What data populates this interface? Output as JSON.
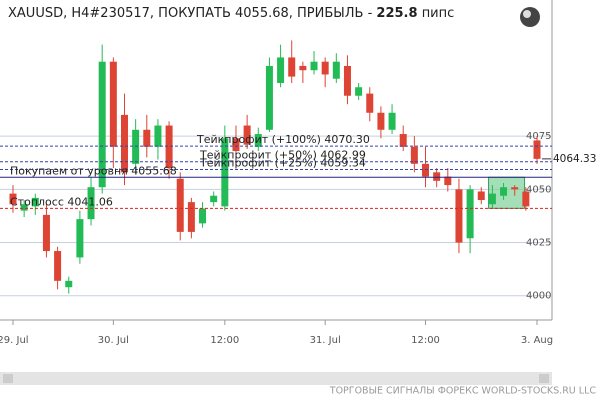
{
  "chart_data": {
    "type": "candlestick",
    "title": "XAUUSD, H4#230517, ПОКУПАТЬ 4055.68, ПРИБЫЛЬ -",
    "profit": 225.8,
    "profit_unit": "пипс",
    "footer": "ТОРГОВЫЕ СИГНАЛЫ ФОРЕКС WORLD-STOCKS.RU LLC",
    "categories": [
      "29. Jul",
      null,
      null,
      null,
      null,
      null,
      null,
      null,
      null,
      "30. Jul",
      null,
      null,
      null,
      null,
      null,
      null,
      null,
      null,
      null,
      "12:00",
      null,
      null,
      null,
      null,
      null,
      null,
      null,
      null,
      "31. Jul",
      null,
      null,
      null,
      null,
      null,
      null,
      null,
      null,
      "12:00",
      null,
      null,
      null,
      null,
      null,
      null,
      null,
      null,
      null,
      "3. Aug"
    ],
    "open": [
      4048,
      4040,
      4042,
      4038,
      4021,
      4004,
      4018,
      4036,
      4051,
      4110,
      4085,
      4062,
      4078,
      4070,
      4080,
      4055,
      4044,
      4034,
      4044,
      4042,
      4074,
      4080,
      4070,
      4078,
      4100,
      4112,
      4108,
      4106,
      4110,
      4102,
      4108,
      4094,
      4095,
      4086,
      4078,
      4076,
      4070,
      4062,
      4058,
      4056,
      4050,
      4027,
      4049,
      4043,
      4047,
      4051,
      4049,
      4073
    ],
    "high": [
      4052,
      4045,
      4048,
      4043,
      4023,
      4009,
      4040,
      4056,
      4118,
      4112,
      4095,
      4083,
      4085,
      4083,
      4082,
      4058,
      4046,
      4044,
      4049,
      4080,
      4080,
      4085,
      4079,
      4112,
      4118,
      4120,
      4110,
      4115,
      4112,
      4114,
      4113,
      4100,
      4098,
      4089,
      4090,
      4080,
      4075,
      4070,
      4060,
      4060,
      4055,
      4052,
      4051,
      4052,
      4053,
      4052,
      4051,
      4075
    ],
    "low": [
      4039,
      4037,
      4038,
      4018,
      4003,
      4001,
      4015,
      4033,
      4048,
      4060,
      4052,
      4057,
      4065,
      4064,
      4055,
      4026,
      4027,
      4032,
      4042,
      4040,
      4066,
      4069,
      4068,
      4077,
      4098,
      4100,
      4100,
      4104,
      4098,
      4100,
      4090,
      4092,
      4082,
      4074,
      4076,
      4068,
      4058,
      4051,
      4051,
      4049,
      4020,
      4020,
      4043,
      4041,
      4045,
      4047,
      4040,
      4062
    ],
    "close": [
      4043,
      4043,
      4046,
      4021,
      4007,
      4007,
      4036,
      4051,
      4110,
      4070,
      4058,
      4078,
      4070,
      4080,
      4060,
      4030,
      4030,
      4041,
      4047,
      4074,
      4068,
      4071,
      4076,
      4108,
      4112,
      4103,
      4106,
      4110,
      4104,
      4110,
      4094,
      4098,
      4086,
      4078,
      4086,
      4070,
      4062,
      4056,
      4054,
      4052,
      4025,
      4050,
      4045,
      4048,
      4051,
      4050,
      4042,
      4064.33
    ],
    "up_color": "#22bb55",
    "down_color": "#dd4433",
    "ylim": [
      3990,
      4139
    ],
    "yticks": [
      4000,
      4025,
      4050,
      4075
    ],
    "grid": true,
    "levels": [
      {
        "label": "Тейкпрофит (+100%) 4070.30",
        "value": 4070.3,
        "color": "#3344aa",
        "dash": true
      },
      {
        "label": "Тейкпрофит (+50%) 4062.99",
        "value": 4062.99,
        "color": "#3344aa",
        "dash": true
      },
      {
        "label": "Тейкпрофит (+25%) 4059.34",
        "value": 4059.34,
        "color": "#3344aa",
        "dash": true
      },
      {
        "label": "Покупаем от уровня 4055.68",
        "value": 4055.68,
        "color": "#222288",
        "dash": false
      },
      {
        "label": "Стоплосс 4041.06",
        "value": 4041.06,
        "color": "#dd2222",
        "dash": true
      }
    ],
    "last_price": 4064.33
  }
}
